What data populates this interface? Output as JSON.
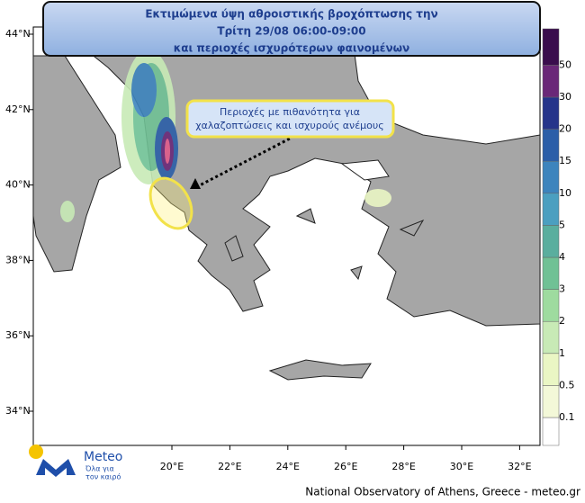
{
  "header": {
    "title_lines": [
      "Εκτιμώμενα ύψη αθροιστικής βροχόπτωσης την",
      "Τρίτη 29/08 06:00-09:00",
      "και περιοχές ισχυρότερων φαινομένων"
    ]
  },
  "annotation": {
    "lines": [
      "Περιοχές με πιθανότητα για",
      "χαλαζοπτώσεις και ισχυρούς ανέμους"
    ]
  },
  "map": {
    "lat_ticks": [
      {
        "value": 44,
        "label": "44°N"
      },
      {
        "value": 42,
        "label": "42°N"
      },
      {
        "value": 40,
        "label": "40°N"
      },
      {
        "value": 38,
        "label": "38°N"
      },
      {
        "value": 36,
        "label": "36°N"
      },
      {
        "value": 34,
        "label": "34°N"
      }
    ],
    "lon_ticks": [
      {
        "value": 20,
        "label": "20°E"
      },
      {
        "value": 22,
        "label": "22°E"
      },
      {
        "value": 24,
        "label": "24°E"
      },
      {
        "value": 26,
        "label": "26°E"
      },
      {
        "value": 28,
        "label": "28°E"
      },
      {
        "value": 30,
        "label": "30°E"
      },
      {
        "value": 32,
        "label": "32°E"
      }
    ]
  },
  "colorbar": {
    "levels": [
      0.1,
      0.5,
      1,
      2,
      3,
      4,
      5,
      10,
      15,
      20,
      30,
      50
    ],
    "colors": [
      "#ffffff",
      "#f3f8d8",
      "#eaf6c4",
      "#c8eab6",
      "#9edb9f",
      "#70c195",
      "#5aae9e",
      "#4b9fc0",
      "#3d84bd",
      "#2b5ea8",
      "#25348a",
      "#6a2878",
      "#3a0d4d"
    ]
  },
  "logo": {
    "name": "Meteo",
    "tagline_lines": [
      "Όλα για",
      "τον καιρό"
    ]
  },
  "footer": "National Observatory of Athens, Greece - meteo.gr"
}
